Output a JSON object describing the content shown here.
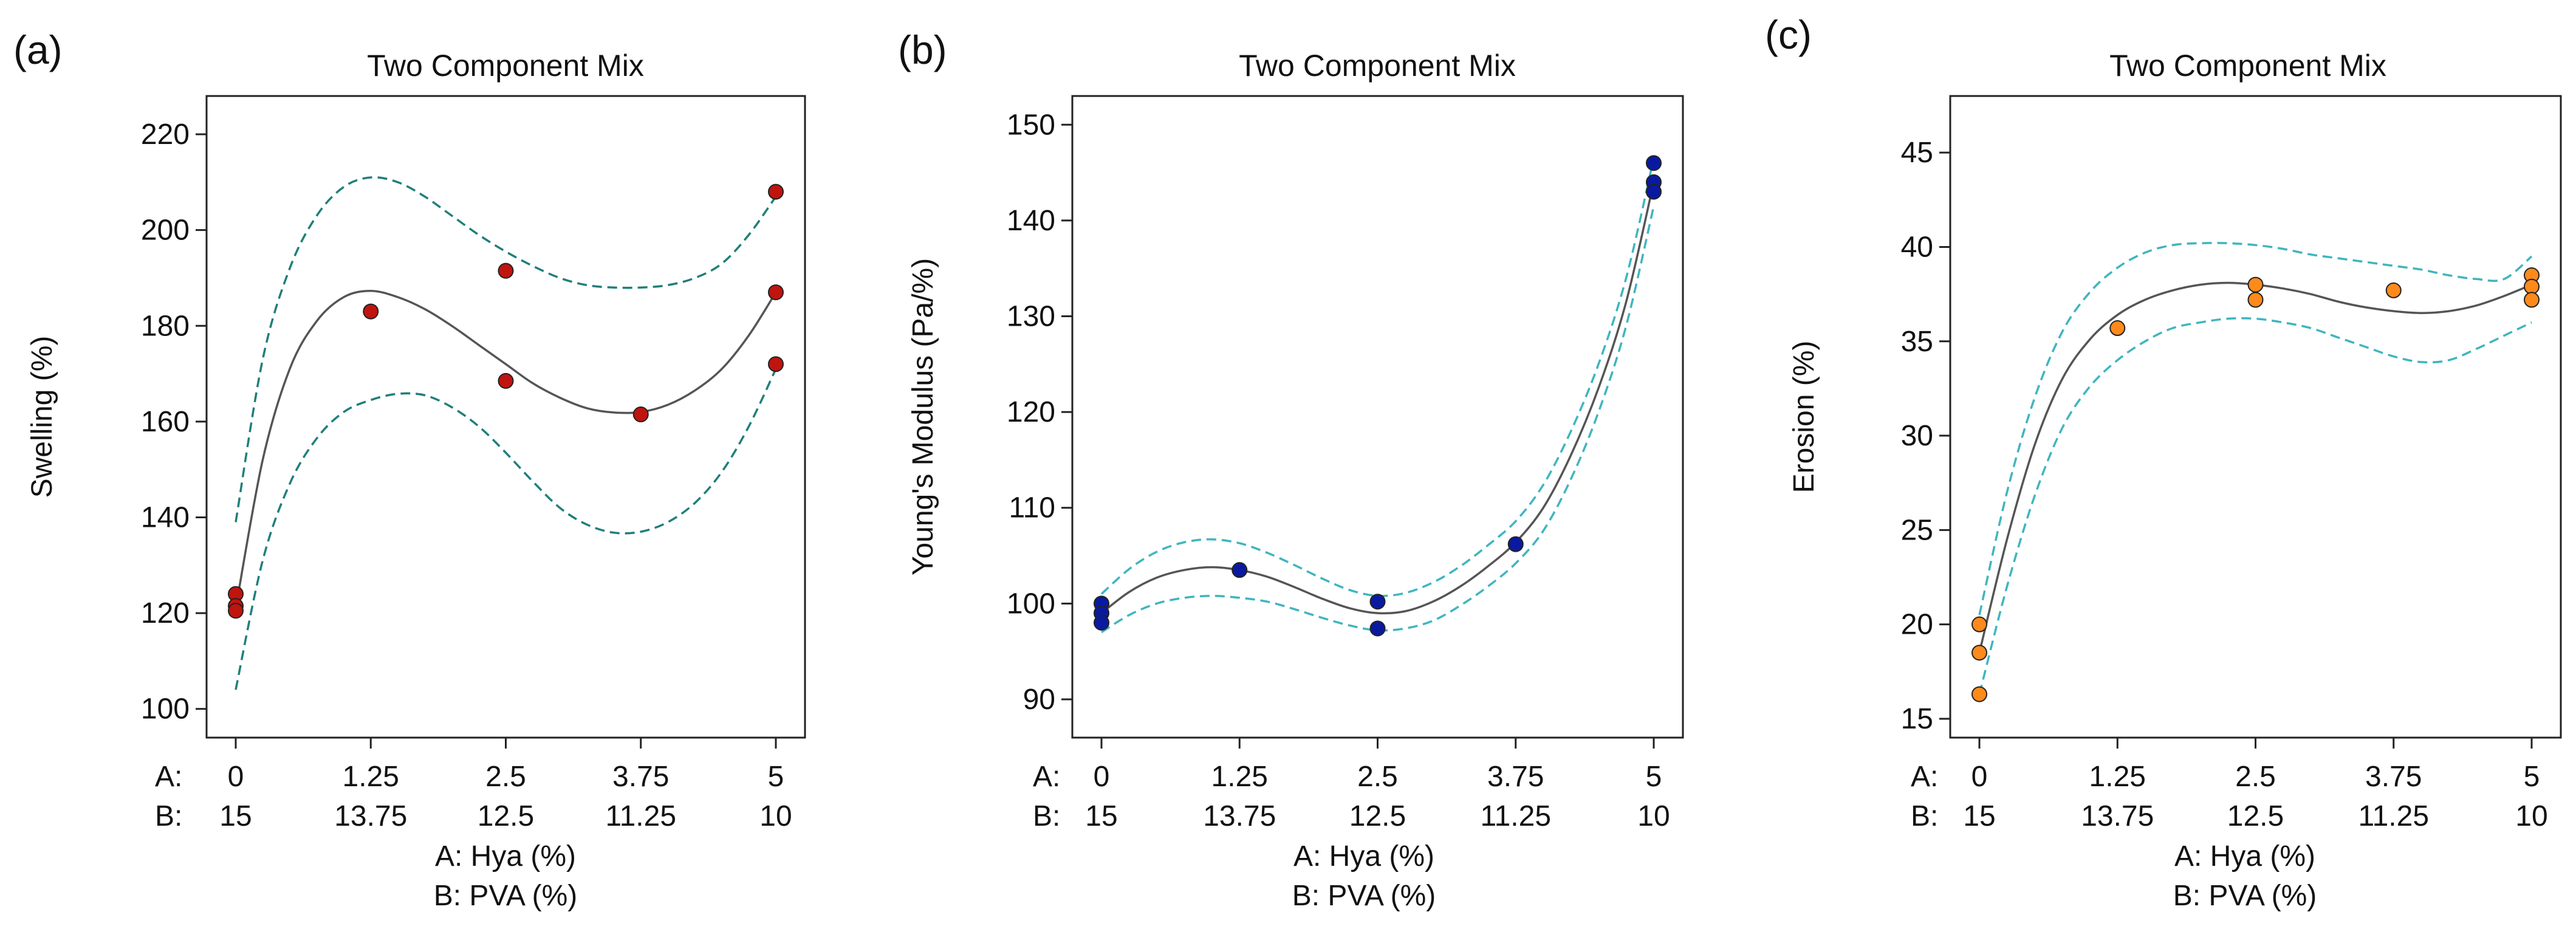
{
  "figure": {
    "axis_prefix_a": "A:",
    "axis_prefix_b": "B:",
    "xlabel_a": "A:  Hya (%)",
    "xlabel_b": "B: PVA (%)"
  },
  "chart_data": [
    {
      "type": "scatter",
      "panel_label": "(a)",
      "title": "Two Component Mix",
      "ylabel": "Swelling (%)",
      "x_ticks_a": [
        "0",
        "1.25",
        "2.5",
        "3.75",
        "5"
      ],
      "x_ticks_b": [
        "15",
        "13.75",
        "12.5",
        "11.25",
        "10"
      ],
      "xlim": [
        0,
        5
      ],
      "ylim": [
        94,
        228
      ],
      "y_ticks": [
        100,
        120,
        140,
        160,
        180,
        200,
        220
      ],
      "marker_color": "#c0140f",
      "line_color": "#555555",
      "band_color": "#1f7f7a",
      "points": [
        [
          0,
          124
        ],
        [
          0,
          121.5
        ],
        [
          0,
          120.5
        ],
        [
          1.25,
          183
        ],
        [
          2.5,
          191.5
        ],
        [
          2.5,
          168.5
        ],
        [
          3.75,
          161.5
        ],
        [
          5,
          208
        ],
        [
          5,
          187
        ],
        [
          5,
          172
        ]
      ],
      "fit": [
        [
          0,
          121
        ],
        [
          0.25,
          152
        ],
        [
          0.5,
          171
        ],
        [
          0.75,
          181
        ],
        [
          1.0,
          186
        ],
        [
          1.25,
          187.3
        ],
        [
          1.5,
          186
        ],
        [
          1.75,
          183.5
        ],
        [
          2.0,
          180
        ],
        [
          2.25,
          176
        ],
        [
          2.5,
          172
        ],
        [
          2.75,
          168
        ],
        [
          3.0,
          165
        ],
        [
          3.25,
          162.8
        ],
        [
          3.5,
          161.9
        ],
        [
          3.75,
          162
        ],
        [
          4.0,
          163.5
        ],
        [
          4.25,
          166.5
        ],
        [
          4.5,
          171
        ],
        [
          4.75,
          178
        ],
        [
          5.0,
          187
        ]
      ],
      "upper_band": [
        [
          0,
          139
        ],
        [
          0.25,
          173
        ],
        [
          0.5,
          192
        ],
        [
          0.75,
          203
        ],
        [
          1.0,
          209
        ],
        [
          1.25,
          211
        ],
        [
          1.5,
          210
        ],
        [
          1.75,
          207
        ],
        [
          2.0,
          203
        ],
        [
          2.25,
          199
        ],
        [
          2.5,
          195.5
        ],
        [
          2.75,
          192.5
        ],
        [
          3.0,
          190
        ],
        [
          3.25,
          188.5
        ],
        [
          3.5,
          188
        ],
        [
          3.75,
          188
        ],
        [
          4.0,
          188.5
        ],
        [
          4.25,
          190
        ],
        [
          4.5,
          193
        ],
        [
          4.75,
          199
        ],
        [
          5.0,
          207
        ]
      ],
      "lower_band": [
        [
          0,
          104
        ],
        [
          0.25,
          131
        ],
        [
          0.5,
          147
        ],
        [
          0.75,
          156.5
        ],
        [
          1.0,
          162
        ],
        [
          1.25,
          164.5
        ],
        [
          1.5,
          165.8
        ],
        [
          1.75,
          165.5
        ],
        [
          2.0,
          163
        ],
        [
          2.25,
          159
        ],
        [
          2.5,
          153.5
        ],
        [
          2.75,
          147.5
        ],
        [
          3.0,
          142
        ],
        [
          3.25,
          138.5
        ],
        [
          3.5,
          136.8
        ],
        [
          3.75,
          137
        ],
        [
          4.0,
          139
        ],
        [
          4.25,
          143
        ],
        [
          4.5,
          149.5
        ],
        [
          4.75,
          159
        ],
        [
          5.0,
          171
        ]
      ]
    },
    {
      "type": "scatter",
      "panel_label": "(b)",
      "title": "Two Component Mix",
      "ylabel": "Young's Modulus (Pa/%)",
      "x_ticks_a": [
        "0",
        "1.25",
        "2.5",
        "3.75",
        "5"
      ],
      "x_ticks_b": [
        "15",
        "13.75",
        "12.5",
        "11.25",
        "10"
      ],
      "xlim": [
        0,
        5
      ],
      "ylim": [
        86,
        153
      ],
      "y_ticks": [
        90,
        100,
        110,
        120,
        130,
        140,
        150
      ],
      "marker_color": "#0a1aa0",
      "line_color": "#555555",
      "band_color": "#3fb5bf",
      "points": [
        [
          0,
          100
        ],
        [
          0,
          99
        ],
        [
          0,
          98
        ],
        [
          1.25,
          103.5
        ],
        [
          2.5,
          100.2
        ],
        [
          2.5,
          97.4
        ],
        [
          3.75,
          106.2
        ],
        [
          5,
          146
        ],
        [
          5,
          144
        ],
        [
          5,
          143
        ]
      ],
      "fit": [
        [
          0,
          99
        ],
        [
          0.25,
          101.2
        ],
        [
          0.5,
          102.7
        ],
        [
          0.75,
          103.5
        ],
        [
          1.0,
          103.8
        ],
        [
          1.25,
          103.5
        ],
        [
          1.5,
          102.8
        ],
        [
          1.75,
          101.7
        ],
        [
          2.0,
          100.5
        ],
        [
          2.25,
          99.5
        ],
        [
          2.5,
          99
        ],
        [
          2.75,
          99.2
        ],
        [
          3.0,
          100.2
        ],
        [
          3.25,
          101.8
        ],
        [
          3.5,
          103.9
        ],
        [
          3.75,
          106.4
        ],
        [
          4.0,
          110
        ],
        [
          4.25,
          115.5
        ],
        [
          4.5,
          122.5
        ],
        [
          4.75,
          131.5
        ],
        [
          5.0,
          144
        ]
      ],
      "upper_band": [
        [
          0,
          101
        ],
        [
          0.25,
          103.6
        ],
        [
          0.5,
          105.4
        ],
        [
          0.75,
          106.4
        ],
        [
          1.0,
          106.7
        ],
        [
          1.25,
          106.3
        ],
        [
          1.5,
          105.3
        ],
        [
          1.75,
          104
        ],
        [
          2.0,
          102.6
        ],
        [
          2.25,
          101.4
        ],
        [
          2.5,
          100.8
        ],
        [
          2.75,
          101.1
        ],
        [
          3.0,
          102.2
        ],
        [
          3.25,
          103.9
        ],
        [
          3.5,
          106.1
        ],
        [
          3.75,
          108.6
        ],
        [
          4.0,
          112.4
        ],
        [
          4.25,
          118
        ],
        [
          4.5,
          125
        ],
        [
          4.75,
          134
        ],
        [
          5.0,
          146.5
        ]
      ],
      "lower_band": [
        [
          0,
          97
        ],
        [
          0.25,
          98.8
        ],
        [
          0.5,
          100
        ],
        [
          0.75,
          100.6
        ],
        [
          1.0,
          100.8
        ],
        [
          1.25,
          100.6
        ],
        [
          1.5,
          100.2
        ],
        [
          1.75,
          99.4
        ],
        [
          2.0,
          98.5
        ],
        [
          2.25,
          97.7
        ],
        [
          2.5,
          97.2
        ],
        [
          2.75,
          97.4
        ],
        [
          3.0,
          98.2
        ],
        [
          3.25,
          99.8
        ],
        [
          3.5,
          101.8
        ],
        [
          3.75,
          104.2
        ],
        [
          4.0,
          107.6
        ],
        [
          4.25,
          113
        ],
        [
          4.5,
          120
        ],
        [
          4.75,
          129
        ],
        [
          5.0,
          141.5
        ]
      ]
    },
    {
      "type": "scatter",
      "panel_label": "(c)",
      "title": "Two Component Mix",
      "ylabel": "Erosion (%)",
      "x_ticks_a": [
        "0",
        "1.25",
        "2.5",
        "3.75",
        "5"
      ],
      "x_ticks_b": [
        "15",
        "13.75",
        "12.5",
        "11.25",
        "10"
      ],
      "xlim": [
        0,
        5
      ],
      "ylim": [
        14,
        48
      ],
      "y_ticks": [
        15,
        20,
        25,
        30,
        35,
        40,
        45
      ],
      "marker_color": "#ff8a1c",
      "line_color": "#555555",
      "band_color": "#3fb5bf",
      "points": [
        [
          0,
          20
        ],
        [
          0,
          18.5
        ],
        [
          0,
          16.3
        ],
        [
          1.25,
          35.7
        ],
        [
          2.5,
          38
        ],
        [
          2.5,
          37.2
        ],
        [
          3.75,
          37.7
        ],
        [
          5,
          38.5
        ],
        [
          5,
          37.9
        ],
        [
          5,
          37.2
        ]
      ],
      "fit": [
        [
          0,
          18.5
        ],
        [
          0.25,
          24.5
        ],
        [
          0.5,
          29.5
        ],
        [
          0.75,
          33
        ],
        [
          1.0,
          35.1
        ],
        [
          1.25,
          36.4
        ],
        [
          1.5,
          37.2
        ],
        [
          1.75,
          37.7
        ],
        [
          2.0,
          38
        ],
        [
          2.25,
          38.1
        ],
        [
          2.5,
          38
        ],
        [
          2.75,
          37.8
        ],
        [
          3.0,
          37.5
        ],
        [
          3.25,
          37.1
        ],
        [
          3.5,
          36.8
        ],
        [
          3.75,
          36.6
        ],
        [
          4.0,
          36.5
        ],
        [
          4.25,
          36.6
        ],
        [
          4.5,
          36.9
        ],
        [
          4.75,
          37.4
        ],
        [
          5.0,
          38
        ]
      ],
      "upper_band": [
        [
          0,
          20.5
        ],
        [
          0.25,
          27
        ],
        [
          0.5,
          32
        ],
        [
          0.75,
          35.5
        ],
        [
          1.0,
          37.6
        ],
        [
          1.25,
          38.9
        ],
        [
          1.5,
          39.7
        ],
        [
          1.75,
          40.1
        ],
        [
          2.0,
          40.2
        ],
        [
          2.25,
          40.2
        ],
        [
          2.5,
          40.1
        ],
        [
          2.75,
          39.9
        ],
        [
          3.0,
          39.6
        ],
        [
          3.25,
          39.4
        ],
        [
          3.5,
          39.2
        ],
        [
          3.75,
          39
        ],
        [
          4.0,
          38.8
        ],
        [
          4.25,
          38.5
        ],
        [
          4.5,
          38.3
        ],
        [
          4.75,
          38.3
        ],
        [
          5.0,
          39.5
        ]
      ],
      "lower_band": [
        [
          0,
          16.3
        ],
        [
          0.25,
          22
        ],
        [
          0.5,
          26.8
        ],
        [
          0.75,
          30.4
        ],
        [
          1.0,
          32.6
        ],
        [
          1.25,
          34
        ],
        [
          1.5,
          35
        ],
        [
          1.75,
          35.7
        ],
        [
          2.0,
          36
        ],
        [
          2.25,
          36.2
        ],
        [
          2.5,
          36.2
        ],
        [
          2.75,
          36
        ],
        [
          3.0,
          35.7
        ],
        [
          3.25,
          35.2
        ],
        [
          3.5,
          34.7
        ],
        [
          3.75,
          34.2
        ],
        [
          4.0,
          33.9
        ],
        [
          4.25,
          34
        ],
        [
          4.5,
          34.6
        ],
        [
          4.75,
          35.3
        ],
        [
          5.0,
          36
        ]
      ]
    }
  ]
}
